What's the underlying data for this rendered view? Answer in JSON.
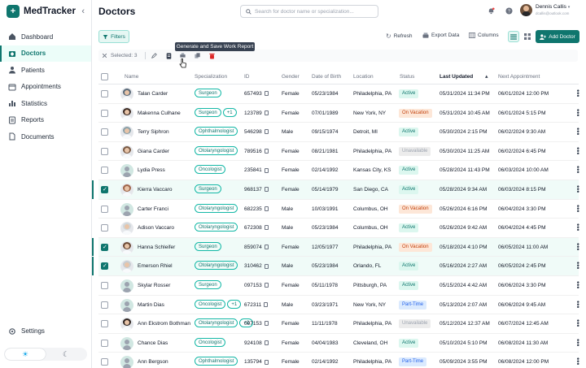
{
  "brand": {
    "name": "MedTracker"
  },
  "sidebar": {
    "items": [
      {
        "label": "Dashboard",
        "icon": "home-icon",
        "active": false
      },
      {
        "label": "Doctors",
        "icon": "doctor-icon",
        "active": true
      },
      {
        "label": "Patients",
        "icon": "patient-icon",
        "active": false
      },
      {
        "label": "Appointments",
        "icon": "calendar-icon",
        "active": false
      },
      {
        "label": "Statistics",
        "icon": "chart-icon",
        "active": false
      },
      {
        "label": "Reports",
        "icon": "report-icon",
        "active": false
      },
      {
        "label": "Documents",
        "icon": "document-icon",
        "active": false
      }
    ],
    "settings_label": "Settings"
  },
  "header": {
    "title": "Doctors",
    "search_placeholder": "Search for doctor name or specialization...",
    "user_name": "Dennis Callis",
    "user_email": "dcallis@outlook.com"
  },
  "toolbar": {
    "filters_label": "Filters",
    "refresh_label": "Refresh",
    "export_label": "Export Data",
    "columns_label": "Columns",
    "add_label": "Add Doctor"
  },
  "selection": {
    "selected_text": "Selected: 3",
    "tooltip": "Generate and Save Work Report"
  },
  "columns": [
    "Name",
    "Specialization",
    "ID",
    "Gender",
    "Date of Birth",
    "Location",
    "Status",
    "Last Updated",
    "Next Appointment"
  ],
  "rows": [
    {
      "name": "Talan Carder",
      "spec": "Surgeon",
      "extra": "",
      "id": "657493",
      "gender": "Female",
      "dob": "05/23/1984",
      "location": "Philadelphia, PA",
      "status": "Active",
      "updated": "05/31/2024 11:34 PM",
      "next": "06/01/2024 12:00 PM",
      "selected": false,
      "avatar": "photo",
      "ac": "#5b6b7a"
    },
    {
      "name": "Makenna Culhane",
      "spec": "Surgeon",
      "extra": "+1",
      "id": "123789",
      "gender": "Female",
      "dob": "07/01/1989",
      "location": "New York, NY",
      "status": "On Vacation",
      "updated": "05/31/2024 10:45 AM",
      "next": "06/01/2024 5:15 PM",
      "selected": false,
      "avatar": "photo",
      "ac": "#3b2a22"
    },
    {
      "name": "Terry Siphron",
      "spec": "Ophthalmologist",
      "extra": "",
      "id": "546298",
      "gender": "Male",
      "dob": "09/15/1974",
      "location": "Detroit, MI",
      "status": "Active",
      "updated": "05/30/2024 2:15 PM",
      "next": "06/02/2024 9:30 AM",
      "selected": false,
      "avatar": "photo",
      "ac": "#8aa0a8"
    },
    {
      "name": "Giana Carder",
      "spec": "Otolaryngologist",
      "extra": "",
      "id": "789516",
      "gender": "Female",
      "dob": "08/21/1981",
      "location": "Philadelphia, PA",
      "status": "Unavailable",
      "updated": "05/30/2024 11:25 AM",
      "next": "06/02/2024 6:45 PM",
      "selected": false,
      "avatar": "photo",
      "ac": "#7a5a44"
    },
    {
      "name": "Lydia Press",
      "spec": "Oncologist",
      "extra": "",
      "id": "235841",
      "gender": "Female",
      "dob": "02/14/1992",
      "location": "Kansas City, KS",
      "status": "Active",
      "updated": "05/28/2024 11:43 PM",
      "next": "06/03/2024 10:00 AM",
      "selected": false,
      "avatar": "placeholder",
      "ac": ""
    },
    {
      "name": "Kierra Vaccaro",
      "spec": "Surgeon",
      "extra": "",
      "id": "968137",
      "gender": "Female",
      "dob": "05/14/1979",
      "location": "San Diego, CA",
      "status": "Active",
      "updated": "05/28/2024 9:34 AM",
      "next": "06/03/2024 8:15 PM",
      "selected": true,
      "avatar": "photo",
      "ac": "#a0664a"
    },
    {
      "name": "Carter Franci",
      "spec": "Otolaryngologist",
      "extra": "",
      "id": "682235",
      "gender": "Male",
      "dob": "10/03/1991",
      "location": "Columbus, OH",
      "status": "On Vacation",
      "updated": "05/26/2024 6:16 PM",
      "next": "06/04/2024 3:30 PM",
      "selected": false,
      "avatar": "placeholder",
      "ac": ""
    },
    {
      "name": "Adison Vaccaro",
      "spec": "Otolaryngologist",
      "extra": "",
      "id": "672308",
      "gender": "Male",
      "dob": "05/23/1984",
      "location": "Columbus, OH",
      "status": "Active",
      "updated": "05/26/2024 9:42 AM",
      "next": "06/04/2024 4:45 PM",
      "selected": false,
      "avatar": "photo",
      "ac": "#cfd6da"
    },
    {
      "name": "Hanna Schleifer",
      "spec": "Surgeon",
      "extra": "",
      "id": "859074",
      "gender": "Female",
      "dob": "12/05/1977",
      "location": "Philadelphia, PA",
      "status": "On Vacation",
      "updated": "05/18/2024 4:10 PM",
      "next": "06/05/2024 11:00 AM",
      "selected": true,
      "avatar": "photo",
      "ac": "#6b4a36"
    },
    {
      "name": "Emerson Rhiel",
      "spec": "Otolaryngologist",
      "extra": "",
      "id": "310462",
      "gender": "Male",
      "dob": "05/23/1984",
      "location": "Orlando, FL",
      "status": "Active",
      "updated": "05/16/2024 2:27 AM",
      "next": "06/05/2024 2:45 PM",
      "selected": true,
      "avatar": "photo",
      "ac": "#c7cdd2"
    },
    {
      "name": "Skylar Rosser",
      "spec": "Surgeon",
      "extra": "",
      "id": "097153",
      "gender": "Female",
      "dob": "05/11/1978",
      "location": "Pittsburgh, PA",
      "status": "Active",
      "updated": "05/15/2024 4:42 AM",
      "next": "06/06/2024 3:30 PM",
      "selected": false,
      "avatar": "placeholder",
      "ac": ""
    },
    {
      "name": "Martin Dias",
      "spec": "Oncologist",
      "extra": "+1",
      "id": "672311",
      "gender": "Male",
      "dob": "03/23/1971",
      "location": "New York, NY",
      "status": "Part-Time",
      "updated": "05/13/2024 2:07 AM",
      "next": "06/06/2024 9:45 AM",
      "selected": false,
      "avatar": "placeholder",
      "ac": ""
    },
    {
      "name": "Ann Ekstrom Bothman",
      "spec": "Otolaryngologist",
      "extra": "+2",
      "id": "097153",
      "gender": "Female",
      "dob": "11/11/1978",
      "location": "Philadelphia, PA",
      "status": "Unavailable",
      "updated": "05/12/2024 12:37 AM",
      "next": "06/07/2024 12:45 AM",
      "selected": false,
      "avatar": "photo",
      "ac": "#2f2521"
    },
    {
      "name": "Chance Dias",
      "spec": "Oncologist",
      "extra": "",
      "id": "924108",
      "gender": "Female",
      "dob": "04/04/1983",
      "location": "Cleveland, OH",
      "status": "Active",
      "updated": "05/10/2024 5:10 PM",
      "next": "06/08/2024 11:30 AM",
      "selected": false,
      "avatar": "placeholder",
      "ac": ""
    },
    {
      "name": "Ann Bergson",
      "spec": "Ophthalmologist",
      "extra": "",
      "id": "135794",
      "gender": "Female",
      "dob": "02/14/1992",
      "location": "Philadelphia, PA",
      "status": "Part-Time",
      "updated": "05/09/2024 3:55 PM",
      "next": "06/08/2024 12:00 PM",
      "selected": false,
      "avatar": "placeholder",
      "ac": ""
    }
  ]
}
